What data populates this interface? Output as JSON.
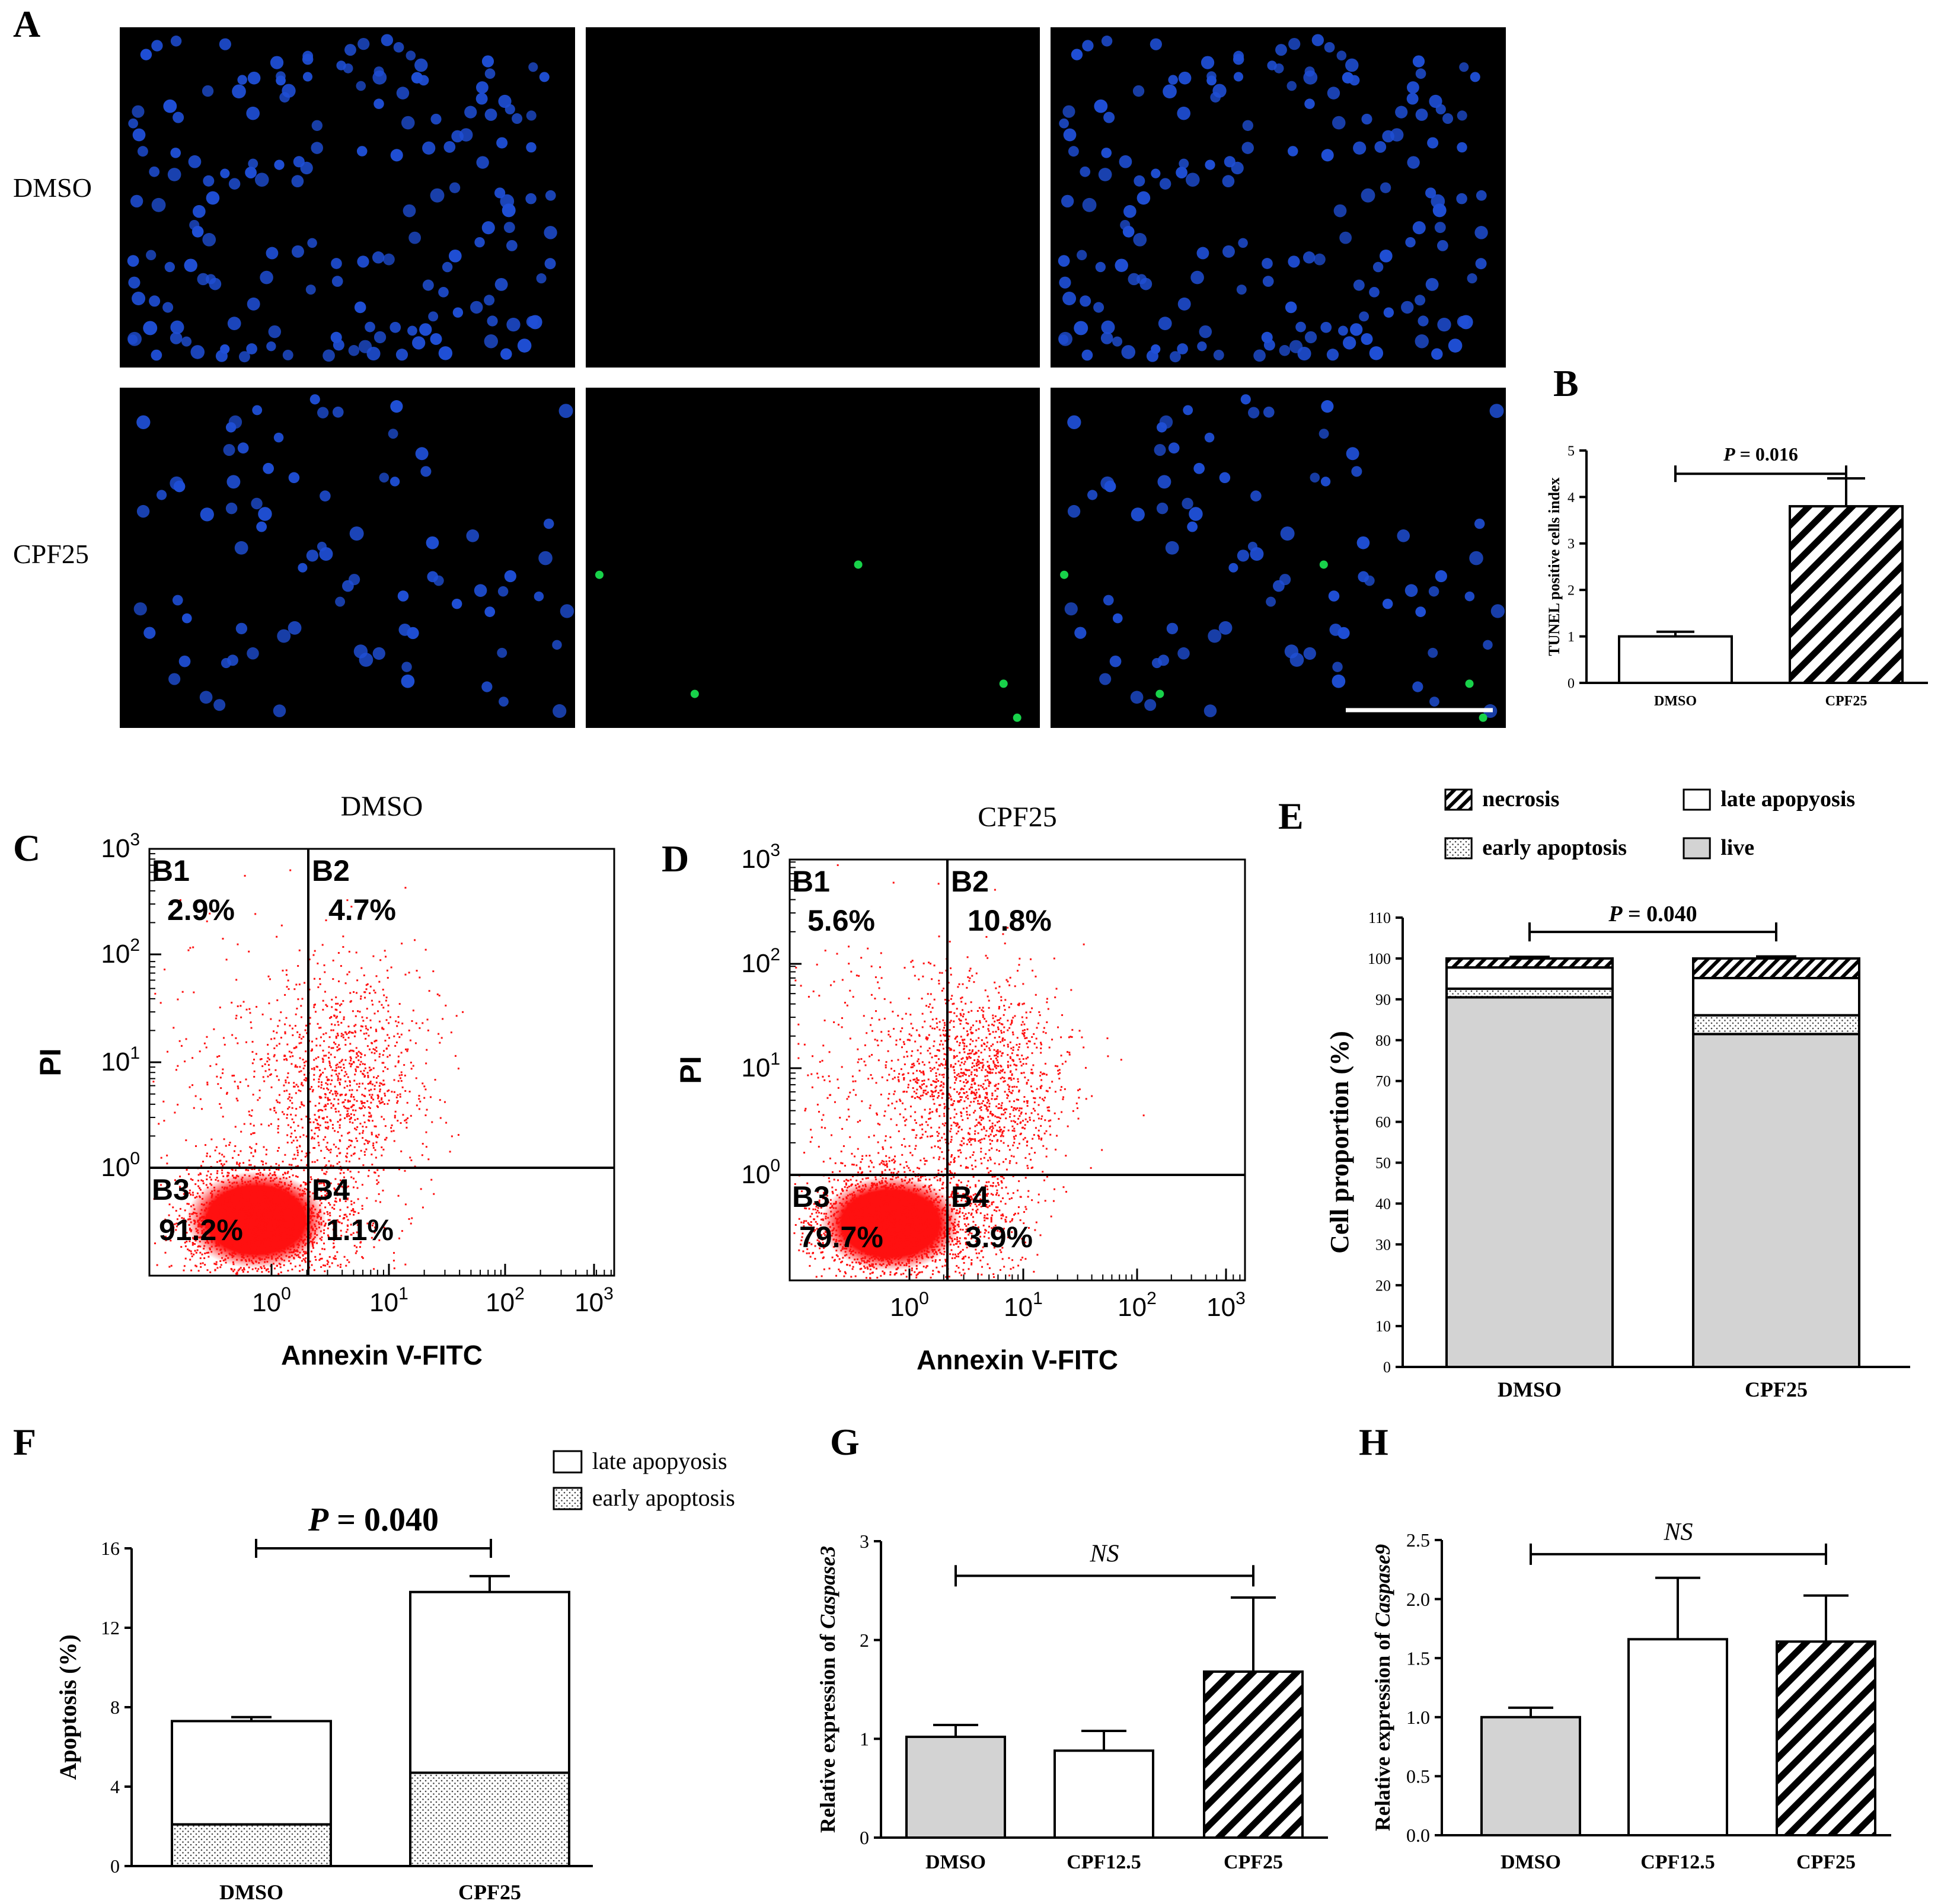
{
  "colors": {
    "micro_bg": "#000000",
    "nuclei": "#1f4fd6",
    "tunel": "#18d24a",
    "dots": "#ff1010",
    "grey": "#d3d3d3",
    "black": "#000000"
  },
  "panel_A": {
    "label": "A",
    "row_labels": [
      "DMSO",
      "CPF25"
    ]
  },
  "chart_data": [
    {
      "id": "B",
      "type": "bar",
      "panel_label": "B",
      "categories": [
        "DMSO",
        "CPF25"
      ],
      "values": [
        1.0,
        3.8
      ],
      "errors": [
        0.1,
        0.6
      ],
      "fills": [
        "white",
        "hatch"
      ],
      "ylabel": "TUNEL positive cells index",
      "ylim": [
        0,
        5
      ],
      "yticks": [
        "0",
        "1",
        "2",
        "3",
        "4",
        "5"
      ],
      "annotation": {
        "italic": "P",
        "text": " = 0.016"
      }
    },
    {
      "id": "C",
      "type": "scatter",
      "panel_label": "C",
      "title": "DMSO",
      "xlabel": "Annexin V-FITC",
      "ylabel": "PI",
      "tick_labels": [
        "10",
        "0",
        "10",
        "1",
        "10",
        "2",
        "10",
        "3"
      ],
      "quadrants": [
        {
          "name": "B1",
          "value": "2.9%"
        },
        {
          "name": "B2",
          "value": "4.7%"
        },
        {
          "name": "B3",
          "value": "91.2%"
        },
        {
          "name": "B4",
          "value": "1.1%"
        }
      ]
    },
    {
      "id": "D",
      "type": "scatter",
      "panel_label": "D",
      "title": "CPF25",
      "xlabel": "Annexin V-FITC",
      "ylabel": "PI",
      "tick_labels": [
        "10",
        "0",
        "10",
        "1",
        "10",
        "2",
        "10",
        "3"
      ],
      "quadrants": [
        {
          "name": "B1",
          "value": "5.6%"
        },
        {
          "name": "B2",
          "value": "10.8%"
        },
        {
          "name": "B3",
          "value": "79.7%"
        },
        {
          "name": "B4",
          "value": "3.9%"
        }
      ]
    },
    {
      "id": "E",
      "type": "bar",
      "stacked": true,
      "panel_label": "E",
      "categories": [
        "DMSO",
        "CPF25"
      ],
      "series": [
        {
          "name": "live",
          "values": [
            90.5,
            81.5
          ],
          "errors": [
            0.8,
            1.0
          ]
        },
        {
          "name": "early apoptosis",
          "values": [
            2.1,
            4.6
          ],
          "errors": [
            0.4,
            0.5
          ]
        },
        {
          "name": "late apopyosis",
          "values": [
            5.2,
            9.1
          ],
          "errors": [
            0,
            0
          ]
        },
        {
          "name": "necrosis",
          "values": [
            2.2,
            4.8
          ],
          "errors": [
            0.4,
            0.5
          ]
        }
      ],
      "legend": [
        "necrosis",
        "late apopyosis",
        "early apoptosis",
        "live"
      ],
      "ylabel": "Cell proportion (%)",
      "ylim": [
        0,
        110
      ],
      "yticks": [
        "0",
        "10",
        "20",
        "30",
        "40",
        "50",
        "60",
        "70",
        "80",
        "90",
        "100",
        "110"
      ],
      "annotation": {
        "italic": "P",
        "text": " = 0.040"
      }
    },
    {
      "id": "F",
      "type": "bar",
      "stacked": true,
      "panel_label": "F",
      "categories": [
        "DMSO",
        "CPF25"
      ],
      "series": [
        {
          "name": "early apoptosis",
          "values": [
            2.1,
            4.7
          ],
          "errors": [
            0.4,
            0.4
          ]
        },
        {
          "name": "late apopyosis",
          "values": [
            5.2,
            9.1
          ],
          "errors": [
            0.2,
            0.8
          ]
        }
      ],
      "legend": [
        "late apopyosis",
        "early apoptosis"
      ],
      "ylabel": "Apoptosis (%)",
      "ylim": [
        0,
        16
      ],
      "yticks": [
        "0",
        "4",
        "8",
        "12",
        "16"
      ],
      "annotation": {
        "italic": "P",
        "text": " = 0.040"
      }
    },
    {
      "id": "G",
      "type": "bar",
      "panel_label": "G",
      "categories": [
        "DMSO",
        "CPF12.5",
        "CPF25"
      ],
      "values": [
        1.02,
        0.88,
        1.68
      ],
      "errors": [
        0.12,
        0.2,
        0.75
      ],
      "fills": [
        "grey",
        "white",
        "hatch"
      ],
      "ylabel_prefix": "Relative expression of ",
      "ylabel_gene": "Caspase3",
      "ylim": [
        0,
        3
      ],
      "yticks": [
        "0",
        "1",
        "2",
        "3"
      ],
      "annotation": {
        "italic": "NS",
        "text": ""
      }
    },
    {
      "id": "H",
      "type": "bar",
      "panel_label": "H",
      "categories": [
        "DMSO",
        "CPF12.5",
        "CPF25"
      ],
      "values": [
        1.0,
        1.66,
        1.64
      ],
      "errors": [
        0.08,
        0.52,
        0.39
      ],
      "fills": [
        "grey",
        "white",
        "hatch"
      ],
      "ylabel_prefix": "Relative expression of ",
      "ylabel_gene": "Caspase9",
      "ylim": [
        0,
        2.5
      ],
      "yticks": [
        "0.0",
        "0.5",
        "1.0",
        "1.5",
        "2.0",
        "2.5"
      ],
      "annotation": {
        "italic": "NS",
        "text": ""
      }
    }
  ]
}
